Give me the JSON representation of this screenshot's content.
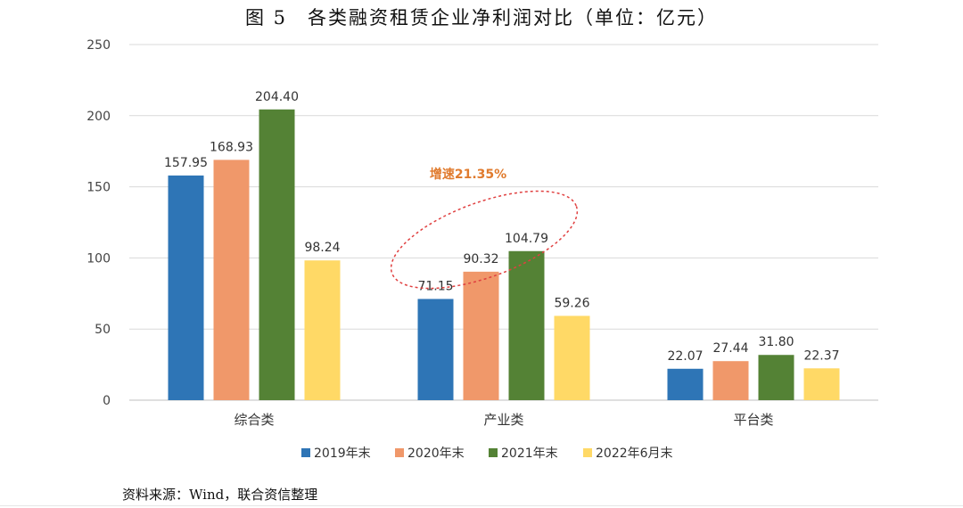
{
  "title": "图 5　各类融资租赁企业净利润对比（单位：亿元）",
  "source": "资料来源：Wind，联合资信整理",
  "colors": {
    "2019": "#2E75B6",
    "2020": "#F0986A",
    "2021": "#548235",
    "2022": "#FFD966",
    "annotation": "#E04040"
  },
  "chart_data": {
    "type": "bar",
    "title": "图 5　各类融资租赁企业净利润对比（单位：亿元）",
    "categories": [
      "综合类",
      "产业类",
      "平台类"
    ],
    "series": [
      {
        "name": "2019年末",
        "values": [
          157.95,
          71.15,
          22.07
        ],
        "labels": [
          "157.95",
          "71.15",
          "22.07"
        ]
      },
      {
        "name": "2020年末",
        "values": [
          168.93,
          90.32,
          27.44
        ],
        "labels": [
          "168.93",
          "90.32",
          "27.44"
        ]
      },
      {
        "name": "2021年末",
        "values": [
          204.4,
          104.79,
          31.8
        ],
        "labels": [
          "204.40",
          "104.79",
          "31.80"
        ]
      },
      {
        "name": "2022年6月末",
        "values": [
          98.24,
          59.26,
          22.37
        ],
        "labels": [
          "98.24",
          "59.26",
          "22.37"
        ]
      }
    ],
    "ylim": [
      0,
      250
    ],
    "yticks": [
      "0",
      "50",
      "100",
      "150",
      "200",
      "250"
    ],
    "xlabel": "",
    "ylabel": "",
    "grid": true,
    "legend_position": "bottom",
    "annotation": {
      "text": "增速21.35%",
      "category": "产业类"
    }
  }
}
